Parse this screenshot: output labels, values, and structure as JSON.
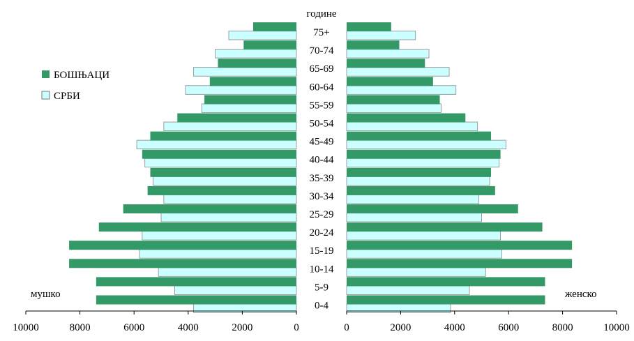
{
  "chart_data": {
    "type": "bar",
    "orientation": "horizontal",
    "subtype": "population-pyramid",
    "axis_title": "године",
    "categories": [
      "0-4",
      "5-9",
      "10-14",
      "15-19",
      "20-24",
      "25-29",
      "30-34",
      "35-39",
      "40-44",
      "45-49",
      "50-54",
      "55-59",
      "60-64",
      "65-69",
      "70-74",
      "75+"
    ],
    "left_label": "мушко",
    "right_label": "женско",
    "xlim": [
      0,
      10000
    ],
    "x_ticks": [
      "10000",
      "8000",
      "6000",
      "4000",
      "2000",
      "0"
    ],
    "x_ticks_right": [
      "0",
      "2000",
      "4000",
      "6000",
      "8000",
      "10000"
    ],
    "legend_position": "left",
    "grid": false,
    "series": [
      {
        "name": "БОШЊАЦИ",
        "color": "#339966",
        "male": [
          7400,
          7400,
          8400,
          8400,
          7300,
          6400,
          5500,
          5400,
          5700,
          5400,
          4400,
          3400,
          3200,
          2900,
          1950,
          1600
        ],
        "female": [
          7350,
          7350,
          8350,
          8350,
          7250,
          6350,
          5500,
          5350,
          5700,
          5350,
          4400,
          3450,
          3200,
          2900,
          1950,
          1650
        ]
      },
      {
        "name": "СРБИ",
        "color": "#ccffff",
        "male": [
          3800,
          4500,
          5100,
          5800,
          5700,
          5000,
          4900,
          5300,
          5600,
          5900,
          4900,
          3500,
          4100,
          3800,
          3000,
          2500
        ],
        "female": [
          3850,
          4550,
          5150,
          5750,
          5700,
          5000,
          4900,
          5300,
          5650,
          5900,
          4850,
          3500,
          4050,
          3800,
          3050,
          2550
        ]
      }
    ]
  }
}
